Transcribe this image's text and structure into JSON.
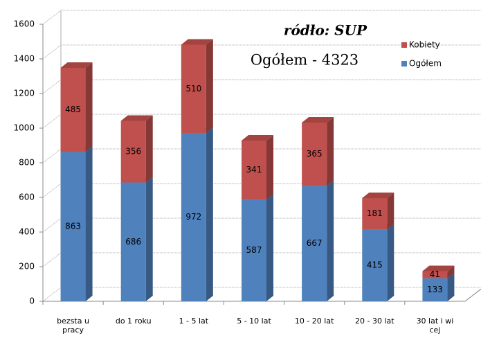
{
  "chart_data": {
    "type": "bar3d_stacked",
    "annotations": [
      "ródło: SUP",
      "Ogółem - 4323"
    ],
    "categories": [
      "bezsta u pracy",
      "do 1 roku",
      "1 - 5 lat",
      "5 - 10 lat",
      "10 - 20 lat",
      "20 - 30 lat",
      "30 lat i wi cej"
    ],
    "series": [
      {
        "name": "Ogółem",
        "color": "#4f81bd",
        "values": [
          863,
          686,
          972,
          587,
          667,
          415,
          133
        ]
      },
      {
        "name": "Kobiety",
        "color": "#c0504d",
        "values": [
          485,
          356,
          510,
          341,
          365,
          181,
          41
        ]
      }
    ],
    "ylim": [
      0,
      1600
    ],
    "yticks": [
      0,
      200,
      400,
      600,
      800,
      1000,
      1200,
      1400,
      1600
    ],
    "grid": true,
    "legend": "top-right"
  }
}
